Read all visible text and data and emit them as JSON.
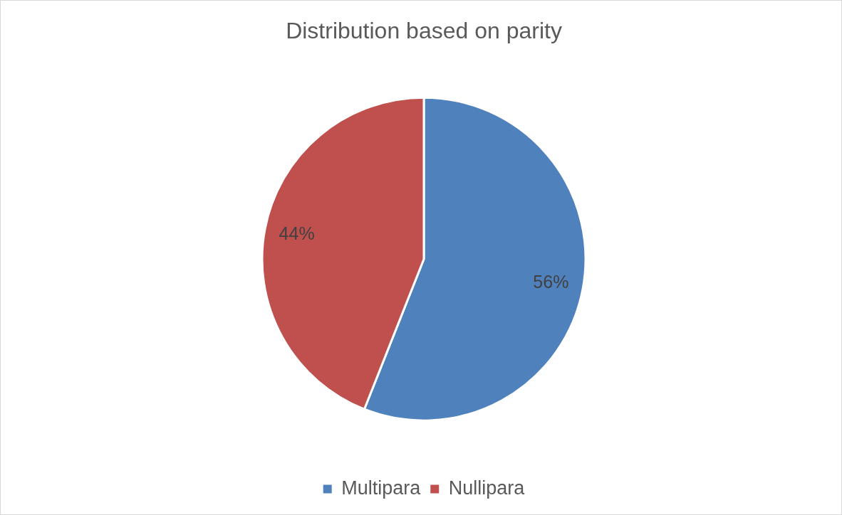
{
  "chart_data": {
    "type": "pie",
    "title": "Distribution based on parity",
    "categories": [
      "Multipara",
      "Nullipara"
    ],
    "values": [
      56,
      44
    ],
    "colors": [
      "#4f81bd",
      "#c0504d"
    ],
    "value_labels": [
      "56%",
      "44%"
    ],
    "legend": "bottom"
  }
}
